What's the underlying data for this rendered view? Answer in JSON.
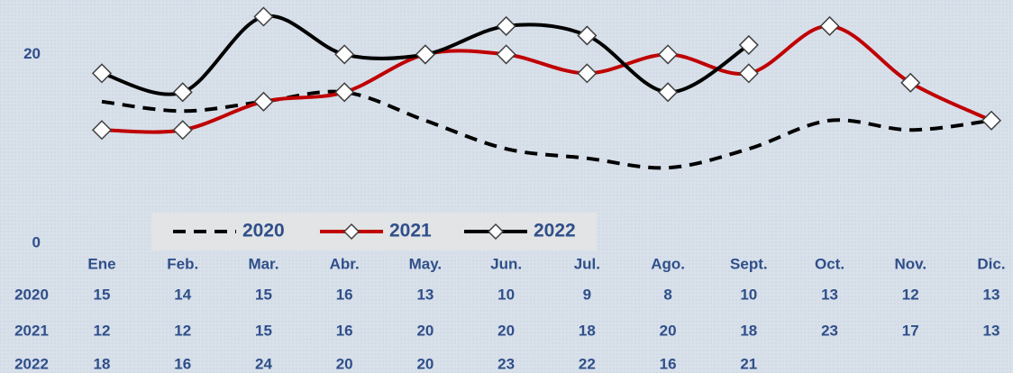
{
  "chart_data": {
    "type": "line",
    "categories": [
      "Ene",
      "Feb.",
      "Mar.",
      "Abr.",
      "May.",
      "Jun.",
      "Jul.",
      "Ago.",
      "Sept.",
      "Oct.",
      "Nov.",
      "Dic."
    ],
    "series": [
      {
        "name": "2020",
        "color": "#000000",
        "line_style": "dashed",
        "marker": "none",
        "values": [
          15,
          14,
          15,
          16,
          13,
          10,
          9,
          8,
          10,
          13,
          12,
          13
        ]
      },
      {
        "name": "2021",
        "color": "#c00000",
        "line_style": "solid",
        "marker": "diamond",
        "values": [
          12,
          12,
          15,
          16,
          20,
          20,
          18,
          20,
          18,
          23,
          17,
          13
        ]
      },
      {
        "name": "2022",
        "color": "#000000",
        "line_style": "solid",
        "marker": "diamond",
        "values": [
          18,
          16,
          24,
          20,
          20,
          23,
          22,
          16,
          21,
          null,
          null,
          null
        ]
      }
    ],
    "ylim": [
      0,
      25
    ],
    "yticks": [
      0,
      20
    ],
    "grid": false,
    "legend": "bottom",
    "data_table": true
  }
}
